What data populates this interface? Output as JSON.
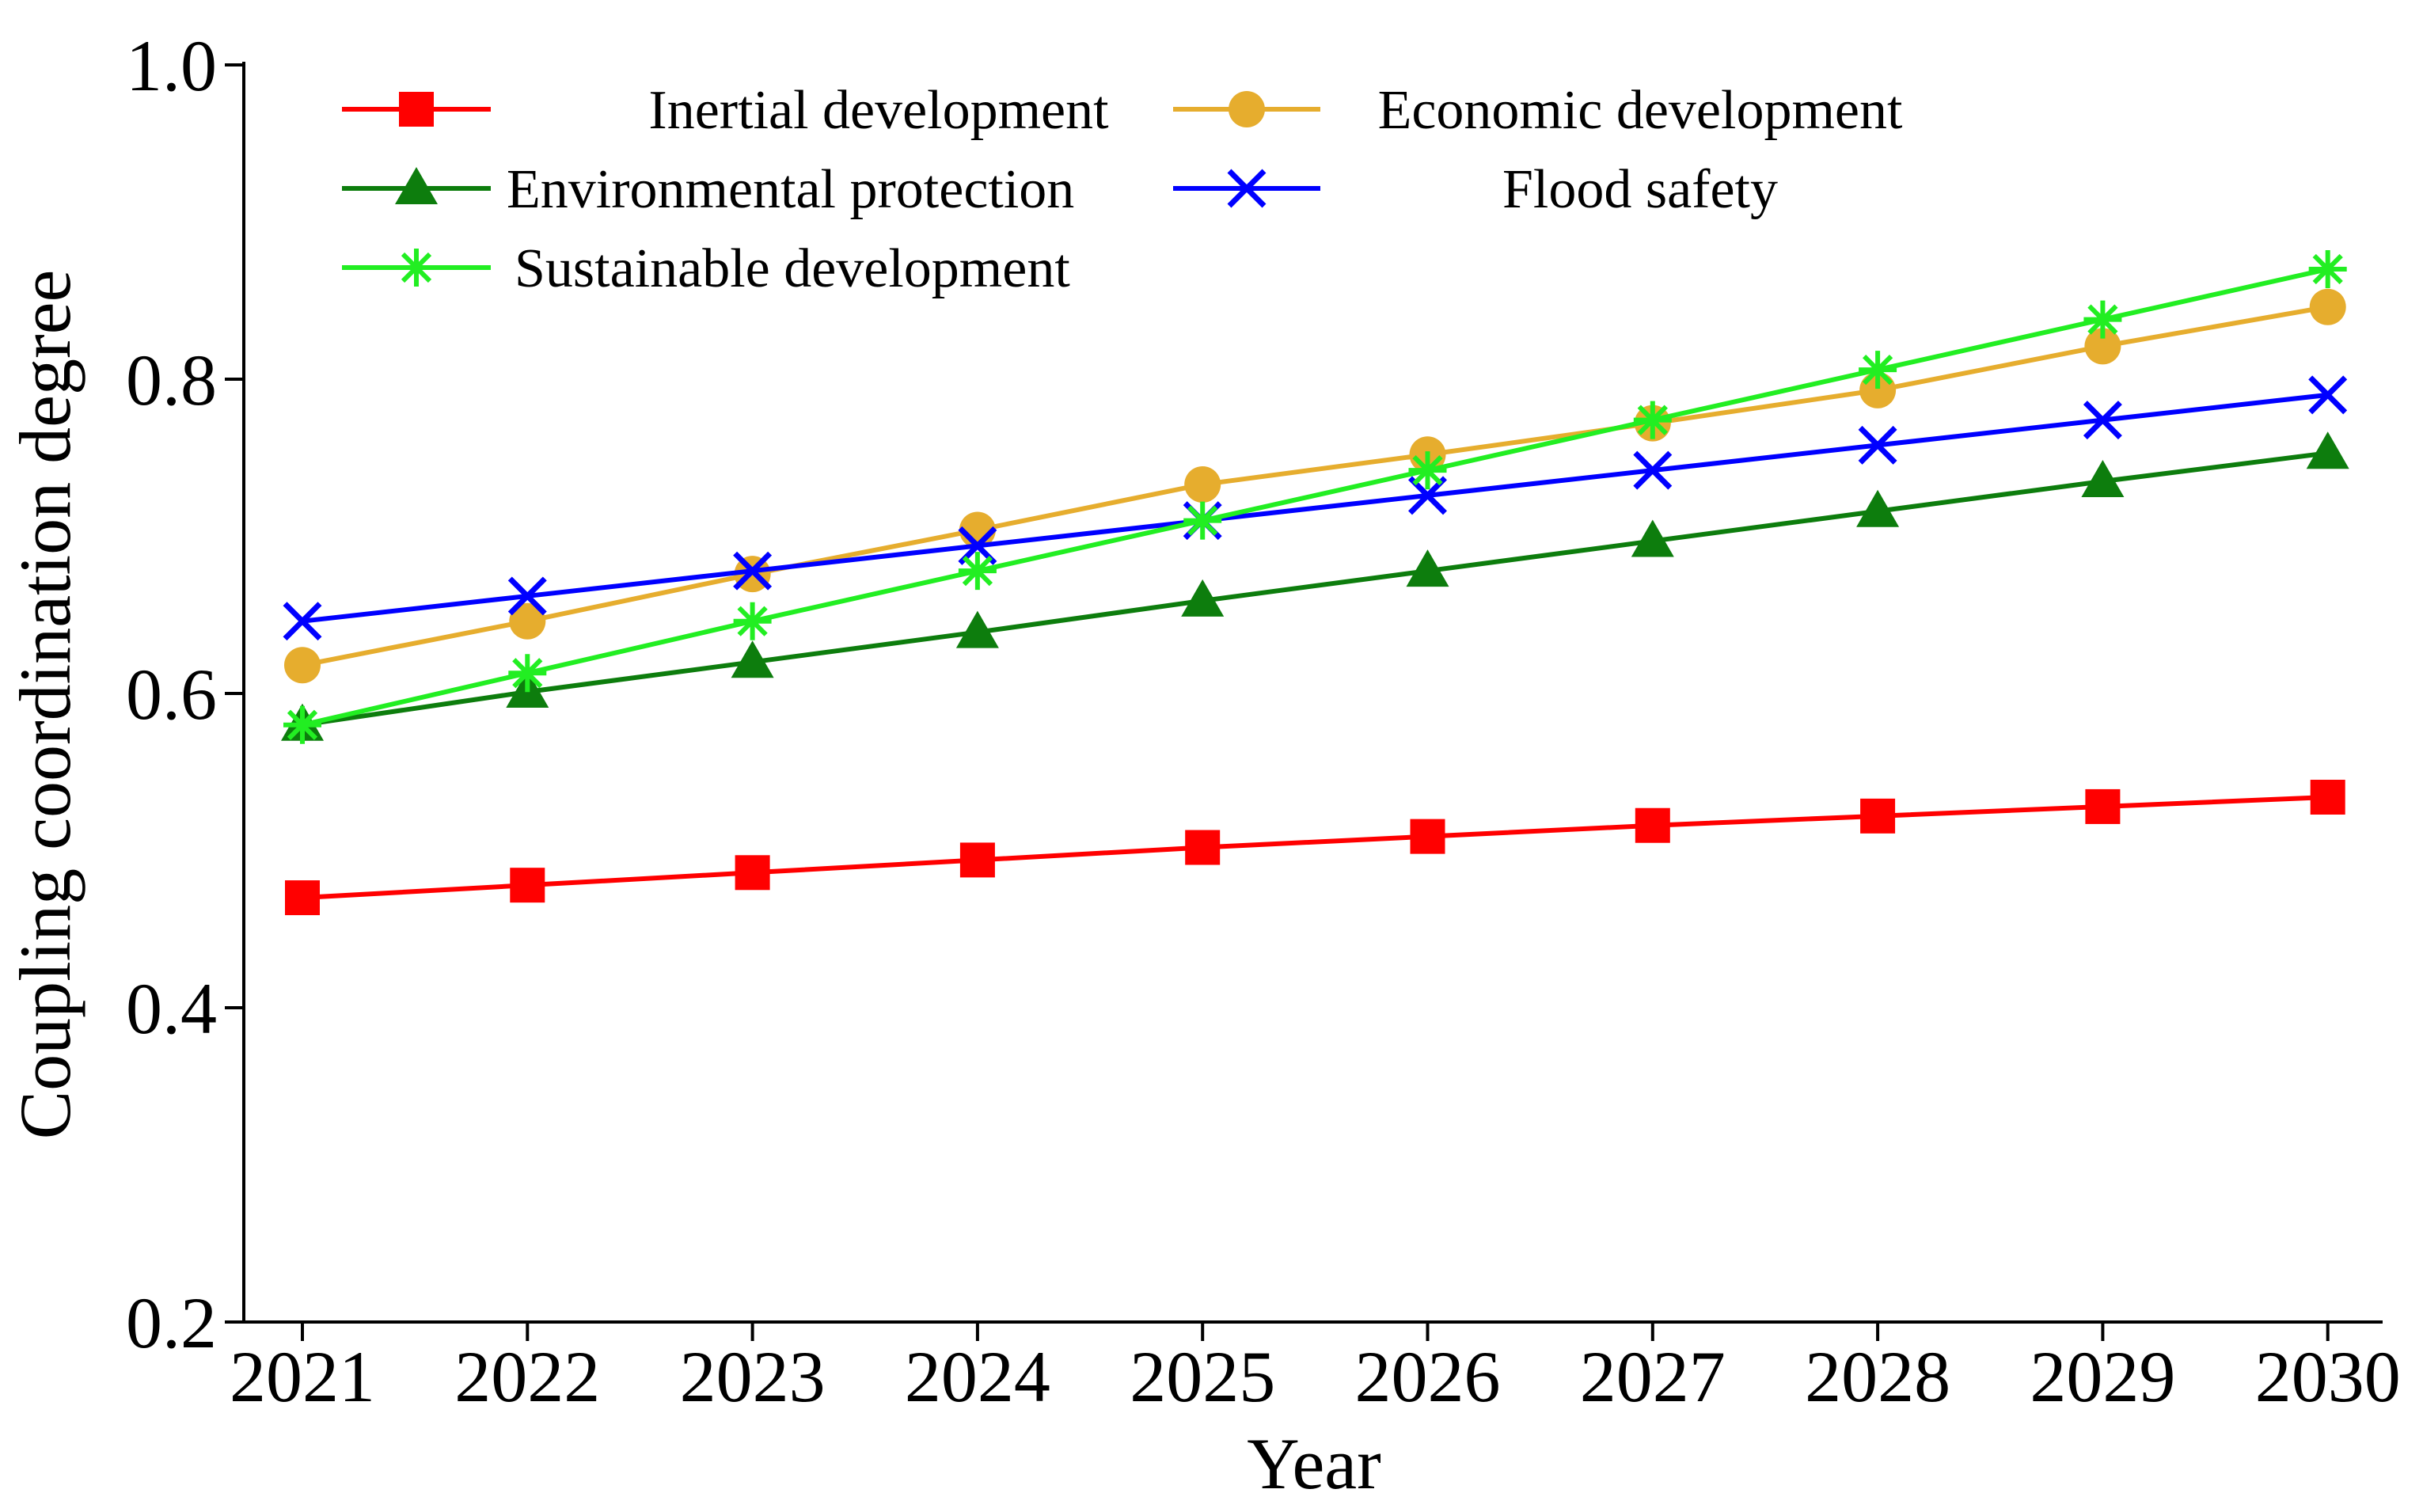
{
  "chart_data": {
    "type": "line",
    "title": "",
    "xlabel": "Year",
    "ylabel": "Coupling coordination degree",
    "categories": [
      "2021",
      "2022",
      "2023",
      "2024",
      "2025",
      "2026",
      "2027",
      "2028",
      "2029",
      "2030"
    ],
    "ylim": [
      0.2,
      1.0
    ],
    "yticks": [
      "0.2",
      "0.4",
      "0.6",
      "0.8",
      "1.0"
    ],
    "grid": false,
    "legend_position": "top-left",
    "series": [
      {
        "name": "Inertial development",
        "color": "#ff0000",
        "marker": "square",
        "values": [
          0.47,
          0.478,
          0.486,
          0.494,
          0.502,
          0.509,
          0.516,
          0.522,
          0.528,
          0.534
        ]
      },
      {
        "name": "Economic development",
        "color": "#e6ad2e",
        "marker": "circle",
        "values": [
          0.618,
          0.646,
          0.676,
          0.704,
          0.733,
          0.752,
          0.772,
          0.793,
          0.821,
          0.846
        ]
      },
      {
        "name": "Environmental protection",
        "color": "#0d7d0d",
        "marker": "triangle",
        "values": [
          0.58,
          0.601,
          0.62,
          0.639,
          0.659,
          0.678,
          0.697,
          0.716,
          0.735,
          0.753
        ]
      },
      {
        "name": "Flood safety",
        "color": "#0000ff",
        "marker": "x",
        "values": [
          0.646,
          0.662,
          0.678,
          0.694,
          0.71,
          0.726,
          0.742,
          0.758,
          0.774,
          0.79
        ]
      },
      {
        "name": "Sustainable development",
        "color": "#22ee22",
        "marker": "star",
        "values": [
          0.58,
          0.613,
          0.646,
          0.678,
          0.71,
          0.742,
          0.774,
          0.806,
          0.838,
          0.87
        ]
      }
    ]
  }
}
